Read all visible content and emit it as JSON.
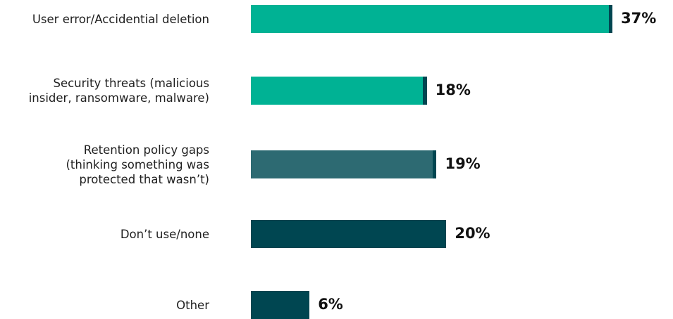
{
  "chart_data": {
    "type": "bar",
    "orientation": "horizontal",
    "categories": [
      "User error/Accidential deletion",
      "Security threats (malicious\ninsider, ransomware, malware)",
      "Retention policy gaps\n(thinking something was\nprotected that wasn’t)",
      "Don’t use/none",
      "Other"
    ],
    "values": [
      37,
      18,
      19,
      20,
      6
    ],
    "value_labels": [
      "37%",
      "18%",
      "19%",
      "20%",
      "6%"
    ],
    "bar_colors": [
      "#00b294",
      "#00b294",
      "#2d6a72",
      "#004651",
      "#004651"
    ],
    "accent_color": "#004651",
    "accent_width_units": 1,
    "xlim": [
      0,
      37.5
    ],
    "title": "",
    "xlabel": "",
    "ylabel": "",
    "grid": false,
    "legend": "none"
  }
}
